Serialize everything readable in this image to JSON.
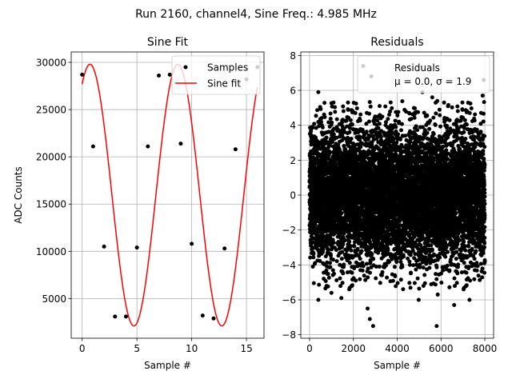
{
  "suptitle": "Run 2160, channel4, Sine Freq.: 4.985 MHz",
  "chart_data": [
    {
      "type": "line",
      "title": "Sine Fit",
      "xlabel": "Sample #",
      "ylabel": "ADC Counts",
      "xlim": [
        -1,
        16.6
      ],
      "ylim": [
        800,
        31100
      ],
      "xticks": [
        0,
        5,
        10,
        15
      ],
      "xtick_labels": [
        "0",
        "5",
        "10",
        "15"
      ],
      "yticks": [
        5000,
        10000,
        15000,
        20000,
        25000,
        30000
      ],
      "ytick_labels": [
        "5000",
        "10000",
        "15000",
        "20000",
        "25000",
        "30000"
      ],
      "grid": true,
      "legend_position": "top-right",
      "series": [
        {
          "name": "Samples",
          "kind": "scatter",
          "color": "#000000",
          "x": [
            0,
            1,
            2,
            3,
            4,
            5,
            6,
            7,
            8,
            9,
            10,
            11,
            12,
            13,
            14,
            15,
            16
          ],
          "y": [
            28700,
            21100,
            10500,
            3100,
            3100,
            10400,
            21100,
            28600,
            28700,
            21400,
            10800,
            3200,
            2900,
            10300,
            20800,
            28200,
            29500
          ]
        },
        {
          "name": "Sine fit",
          "kind": "line",
          "color": "#ff0000",
          "amplitude": 13850,
          "offset": 15950,
          "period_samples": 8.024,
          "phase_at_x0_deg": 58.0,
          "x_range": [
            0,
            16
          ]
        }
      ]
    },
    {
      "type": "scatter",
      "title": "Residuals",
      "xlabel": "Sample #",
      "ylabel": "",
      "xlim": [
        -400,
        8400
      ],
      "ylim": [
        -8.2,
        8.2
      ],
      "xticks": [
        0,
        2000,
        4000,
        6000,
        8000
      ],
      "xtick_labels": [
        "0",
        "2000",
        "4000",
        "6000",
        "8000"
      ],
      "yticks": [
        -8,
        -6,
        -4,
        -2,
        0,
        2,
        4,
        6,
        8
      ],
      "ytick_labels": [
        "−8",
        "−6",
        "−4",
        "−2",
        "0",
        "2",
        "4",
        "6",
        "8"
      ],
      "grid": true,
      "legend_position": "top-right",
      "legend": {
        "label": "Residuals",
        "stats": "μ = 0.0, σ = 1.9"
      },
      "series": [
        {
          "name": "Residuals",
          "color": "#000000",
          "n_points": 8000,
          "x_range": [
            0,
            7999
          ],
          "mean": 0.0,
          "sigma": 1.9,
          "outliers": [
            {
              "x": 2450,
              "y": 7.4
            },
            {
              "x": 2820,
              "y": 6.8
            },
            {
              "x": 7950,
              "y": 6.6
            },
            {
              "x": 400,
              "y": 5.9
            },
            {
              "x": 5150,
              "y": 5.9
            },
            {
              "x": 5600,
              "y": 5.6
            },
            {
              "x": 7900,
              "y": 5.7
            },
            {
              "x": 2750,
              "y": -7.1
            },
            {
              "x": 2900,
              "y": -7.5
            },
            {
              "x": 5800,
              "y": -7.5
            },
            {
              "x": 6600,
              "y": -6.3
            },
            {
              "x": 2650,
              "y": -6.5
            },
            {
              "x": 4980,
              "y": -6.0
            },
            {
              "x": 400,
              "y": -6.0
            },
            {
              "x": 1450,
              "y": -5.9
            },
            {
              "x": 5850,
              "y": -5.7
            },
            {
              "x": 7300,
              "y": -6.0
            },
            {
              "x": 1000,
              "y": -5.6
            },
            {
              "x": 5200,
              "y": -5.2
            }
          ]
        }
      ]
    }
  ]
}
